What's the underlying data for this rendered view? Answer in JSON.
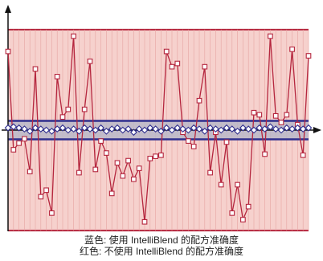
{
  "chart_data": {
    "type": "line",
    "title": "",
    "xlabel": "",
    "ylabel": "",
    "ylim": [
      -1,
      1
    ],
    "grid": true,
    "band": {
      "upper": 0.92,
      "lower": -0.92,
      "color": "#f6d1cd",
      "border_color": "#b5263e"
    },
    "inner_band": {
      "upper": 0.085,
      "lower": -0.085,
      "color": "#b8b9c9",
      "border_color": "#2f2f8e"
    },
    "series": [
      {
        "color": "#b5263e",
        "marker": "square",
        "values": [
          0.72,
          -0.18,
          -0.12,
          -0.08,
          -0.38,
          0.56,
          -0.61,
          -0.55,
          -0.76,
          0.49,
          0.12,
          0.19,
          0.86,
          -0.39,
          0.19,
          0.63,
          -0.36,
          -0.1,
          -0.21,
          -0.58,
          -0.3,
          -0.42,
          -0.28,
          -0.45,
          -0.35,
          -0.84,
          -0.26,
          -0.24,
          -0.23,
          0.72,
          0.58,
          0.61,
          -0.02,
          -0.1,
          -0.15,
          0.27,
          0.58,
          -0.39,
          -0.02,
          -0.5,
          -0.11,
          -0.76,
          -0.5,
          -0.82,
          -0.7,
          0.16,
          0.14,
          -0.22,
          0.86,
          0.13,
          0.07,
          0.14,
          0.74,
          0.05,
          -0.23,
          0.68
        ]
      },
      {
        "color": "#2f2f8e",
        "marker": "diamond",
        "values": [
          0.02,
          0.03,
          0.02,
          0.01,
          -0.01,
          0.02,
          0.01,
          0.0,
          -0.01,
          0.01,
          0.02,
          0.0,
          0.01,
          -0.01,
          0.02,
          0.01,
          0.0,
          0.02,
          -0.01,
          0.01,
          0.02,
          0.0,
          0.01,
          -0.02,
          0.01,
          0.0,
          0.02,
          0.01,
          -0.01,
          0.02,
          0.0,
          0.02,
          0.01,
          0.0,
          0.02,
          0.01,
          -0.01,
          0.02,
          0.01,
          0.0,
          0.02,
          0.01,
          -0.01,
          0.02,
          0.01,
          0.0,
          0.02,
          0.01,
          0.03,
          0.01,
          0.0,
          0.02,
          0.01,
          0.02,
          0.01,
          0.02
        ]
      }
    ],
    "legend": {
      "placement": "bottom",
      "entries": [
        "蓝色: 使用 IntelliBlend 的配方准确度",
        "红色: 不使用 IntelliBlend 的配方准确度"
      ]
    }
  }
}
